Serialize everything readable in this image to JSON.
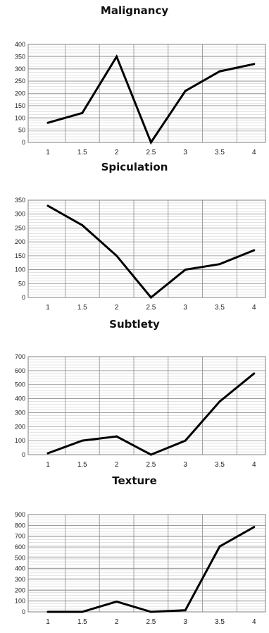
{
  "chart_data": [
    {
      "type": "line",
      "title": "Malignancy",
      "xlabel": "",
      "ylabel": "",
      "categories": [
        "1",
        "1.5",
        "2",
        "2.5",
        "3",
        "3.5",
        "4"
      ],
      "values": [
        80,
        120,
        350,
        0,
        210,
        290,
        320
      ],
      "ylim": [
        0,
        400
      ],
      "yticks": [
        "0",
        "50",
        "100",
        "150",
        "200",
        "250",
        "300",
        "350",
        "400"
      ],
      "grid": true,
      "line_color": "#000000"
    },
    {
      "type": "line",
      "title": "Spiculation",
      "xlabel": "",
      "ylabel": "",
      "categories": [
        "1",
        "1.5",
        "2",
        "2.5",
        "3",
        "3.5",
        "4"
      ],
      "values": [
        330,
        260,
        150,
        0,
        100,
        120,
        170
      ],
      "ylim": [
        0,
        350
      ],
      "yticks": [
        "0",
        "50",
        "100",
        "150",
        "200",
        "250",
        "300",
        "350"
      ],
      "grid": true,
      "line_color": "#000000"
    },
    {
      "type": "line",
      "title": "Subtlety",
      "xlabel": "",
      "ylabel": "",
      "categories": [
        "1",
        "1.5",
        "2",
        "2.5",
        "3",
        "3.5",
        "4"
      ],
      "values": [
        10,
        100,
        130,
        0,
        100,
        380,
        580
      ],
      "ylim": [
        0,
        700
      ],
      "yticks": [
        "0",
        "100",
        "200",
        "300",
        "400",
        "500",
        "600",
        "700"
      ],
      "grid": true,
      "line_color": "#000000"
    },
    {
      "type": "line",
      "title": "Texture",
      "xlabel": "",
      "ylabel": "",
      "categories": [
        "1",
        "1.5",
        "2",
        "2.5",
        "3",
        "3.5",
        "4"
      ],
      "values": [
        0,
        0,
        95,
        0,
        15,
        605,
        785
      ],
      "ylim": [
        0,
        900
      ],
      "yticks": [
        "0",
        "100",
        "200",
        "300",
        "400",
        "500",
        "600",
        "700",
        "800",
        "900"
      ],
      "grid": true,
      "line_color": "#000000"
    }
  ]
}
